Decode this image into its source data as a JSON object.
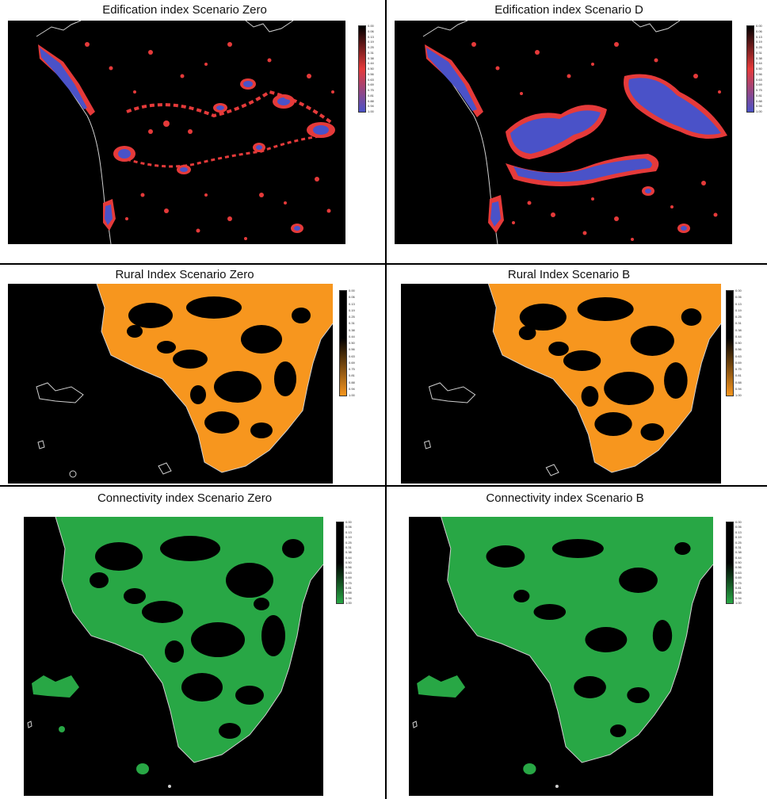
{
  "colors": {
    "edification": [
      "#000000",
      "#e53a3a",
      "#4a52c8"
    ],
    "rural": [
      "#000000",
      "#000000",
      "#f7961e"
    ],
    "connectivity": [
      "#000000",
      "#000000",
      "#28a745"
    ]
  },
  "legends": {
    "edification": [
      "0.00",
      "0.06",
      "0.13",
      "0.19",
      "0.25",
      "0.31",
      "0.38",
      "0.44",
      "0.50",
      "0.56",
      "0.63",
      "0.69",
      "0.75",
      "0.81",
      "0.88",
      "0.94",
      "1.00"
    ],
    "rural": [
      "0.00",
      "0.06",
      "0.13",
      "0.19",
      "0.25",
      "0.31",
      "0.38",
      "0.44",
      "0.50",
      "0.56",
      "0.63",
      "0.69",
      "0.75",
      "0.81",
      "0.88",
      "0.94",
      "1.00"
    ],
    "connectivity": [
      "0.00",
      "0.06",
      "0.13",
      "0.19",
      "0.25",
      "0.31",
      "0.38",
      "0.44",
      "0.50",
      "0.56",
      "0.63",
      "0.69",
      "0.75",
      "0.81",
      "0.88",
      "0.94",
      "1.00"
    ]
  },
  "panels": [
    {
      "id": "edif-zero",
      "title": "Edification index Scenario Zero",
      "kind": "edification"
    },
    {
      "id": "edif-d",
      "title": "Edification index Scenario D",
      "kind": "edification"
    },
    {
      "id": "rural-zero",
      "title": "Rural Index Scenario Zero",
      "kind": "rural"
    },
    {
      "id": "rural-b",
      "title": "Rural Index Scenario B",
      "kind": "rural"
    },
    {
      "id": "conn-zero",
      "title": "Connectivity index Scenario Zero",
      "kind": "connectivity"
    },
    {
      "id": "conn-b",
      "title": "Connectivity index Scenario B",
      "kind": "connectivity"
    }
  ]
}
